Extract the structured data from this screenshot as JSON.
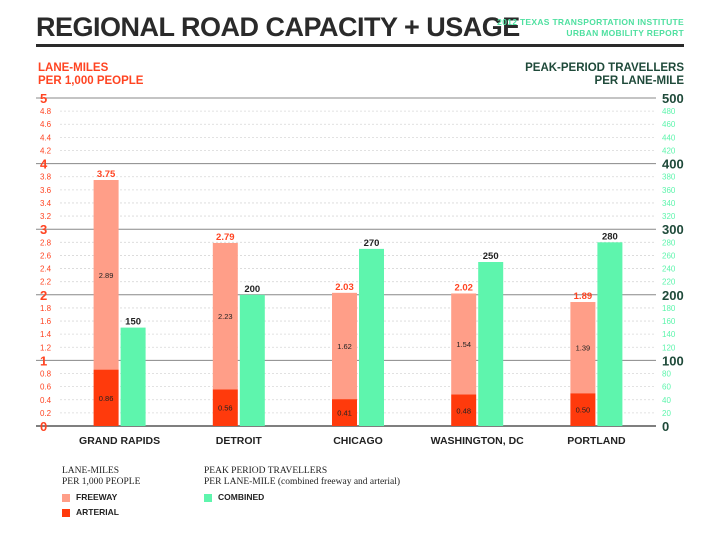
{
  "header": {
    "title": "REGIONAL ROAD CAPACITY + USAGE",
    "source_line1": "2012 TEXAS TRANSPORTATION INSTITUTE",
    "source_line2": "URBAN MOBILITY REPORT"
  },
  "colors": {
    "freeway": "#ff9e88",
    "arterial": "#ff3a0c",
    "combined": "#5ef5ad",
    "left_axis": "#ff4422",
    "right_axis": "#1f4a3a",
    "right_minor": "#5ef5ad"
  },
  "chart_data": {
    "type": "bar",
    "categories": [
      "GRAND RAPIDS",
      "DETROIT",
      "CHICAGO",
      "WASHINGTON, DC",
      "PORTLAND"
    ],
    "y_left": {
      "label_line1": "LANE-MILES",
      "label_line2": "PER 1,000 PEOPLE",
      "range": [
        0,
        5
      ],
      "major_ticks": [
        "0",
        "1",
        "2",
        "3",
        "4",
        "5"
      ],
      "minor_ticks": [
        "0.2",
        "0.4",
        "0.6",
        "0.8",
        "1.2",
        "1.4",
        "1.6",
        "1.8",
        "2.2",
        "2.4",
        "2.6",
        "2.8",
        "3.2",
        "3.4",
        "3.6",
        "3.8",
        "4.2",
        "4.4",
        "4.6",
        "4.8"
      ]
    },
    "y_right": {
      "label_line1": "PEAK-PERIOD TRAVELLERS",
      "label_line2": "PER LANE-MILE",
      "range": [
        0,
        500
      ],
      "major_ticks": [
        "0",
        "100",
        "200",
        "300",
        "400",
        "500"
      ],
      "minor_ticks": [
        "20",
        "40",
        "60",
        "80",
        "120",
        "140",
        "160",
        "180",
        "220",
        "240",
        "260",
        "280",
        "320",
        "340",
        "360",
        "380",
        "420",
        "440",
        "460",
        "480"
      ]
    },
    "series": [
      {
        "name": "FREEWAY",
        "axis": "left",
        "stack": "lane-miles",
        "values": [
          2.89,
          2.23,
          1.62,
          1.54,
          1.39
        ],
        "labels": [
          "2.89",
          "2.23",
          "1.62",
          "1.54",
          "1.39"
        ]
      },
      {
        "name": "ARTERIAL",
        "axis": "left",
        "stack": "lane-miles",
        "values": [
          0.86,
          0.56,
          0.41,
          0.48,
          0.5
        ],
        "labels": [
          "0.86",
          "0.56",
          "0.41",
          "0.48",
          "0.50"
        ]
      },
      {
        "name": "COMBINED",
        "axis": "right",
        "values": [
          150,
          200,
          270,
          250,
          280
        ],
        "labels": [
          "150",
          "200",
          "270",
          "250",
          "280"
        ]
      }
    ],
    "totals": [
      "3.75",
      "2.79",
      "2.03",
      "2.02",
      "1.89"
    ],
    "grid": true
  },
  "legend": {
    "left_title_line1": "LANE-MILES",
    "left_title_line2": "PER 1,000 PEOPLE",
    "freeway_label": "FREEWAY",
    "arterial_label": "ARTERIAL",
    "right_title_line1": "PEAK PERIOD TRAVELLERS",
    "right_title_line2": "PER LANE-MILE (combined freeway and arterial)",
    "combined_label": "COMBINED"
  }
}
